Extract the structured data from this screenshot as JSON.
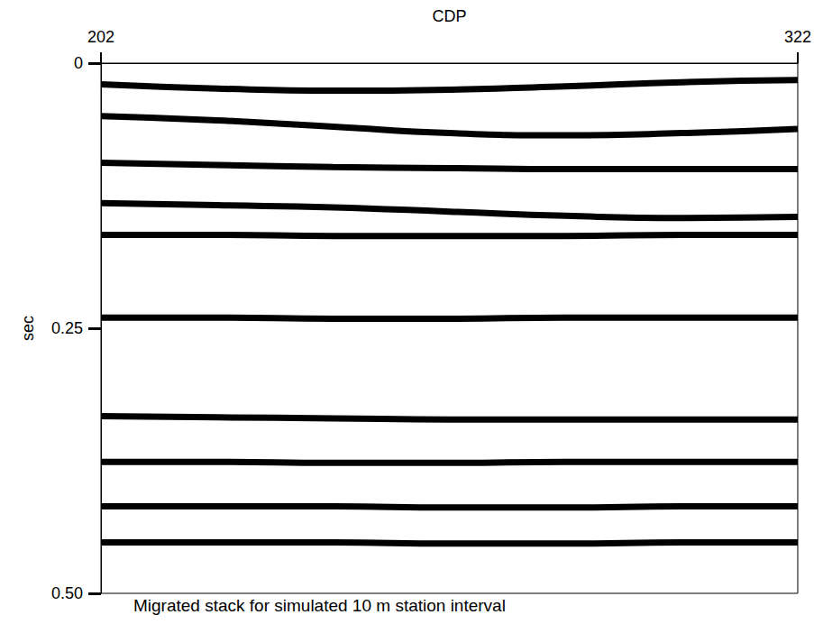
{
  "chart_data": {
    "type": "line",
    "x_label": "CDP",
    "y_label": "sec",
    "caption": "Migrated stack for simulated 10 m station interval",
    "x": [
      202,
      222,
      242,
      262,
      282,
      302,
      322
    ],
    "xlim": [
      202,
      322
    ],
    "xticks": [
      202,
      322
    ],
    "ylim": [
      0,
      0.5
    ],
    "yticks": [
      0,
      0.25,
      {
        "value": 0.5,
        "label": "0.50"
      }
    ],
    "grid": false,
    "marker": "none",
    "line_style": "solid",
    "series": [
      {
        "color": "#000000",
        "values": [
          0.02,
          0.024,
          0.026,
          0.025,
          0.022,
          0.018,
          0.016
        ]
      },
      {
        "color": "#000000",
        "values": [
          0.05,
          0.054,
          0.06,
          0.066,
          0.068,
          0.066,
          0.062
        ]
      },
      {
        "color": "#000000",
        "values": [
          0.094,
          0.096,
          0.098,
          0.099,
          0.1,
          0.1,
          0.1
        ]
      },
      {
        "color": "#000000",
        "values": [
          0.132,
          0.134,
          0.136,
          0.14,
          0.144,
          0.146,
          0.145
        ]
      },
      {
        "color": "#000000",
        "values": [
          0.162,
          0.162,
          0.163,
          0.163,
          0.163,
          0.162,
          0.162
        ]
      },
      {
        "color": "#000000",
        "values": [
          0.24,
          0.24,
          0.241,
          0.241,
          0.24,
          0.24,
          0.24
        ]
      },
      {
        "color": "#000000",
        "values": [
          0.333,
          0.334,
          0.335,
          0.336,
          0.336,
          0.336,
          0.336
        ]
      },
      {
        "color": "#000000",
        "values": [
          0.376,
          0.376,
          0.377,
          0.377,
          0.376,
          0.376,
          0.376
        ]
      },
      {
        "color": "#000000",
        "values": [
          0.418,
          0.418,
          0.418,
          0.419,
          0.419,
          0.418,
          0.418
        ]
      },
      {
        "color": "#000000",
        "values": [
          0.452,
          0.452,
          0.452,
          0.453,
          0.453,
          0.452,
          0.452
        ]
      }
    ]
  }
}
